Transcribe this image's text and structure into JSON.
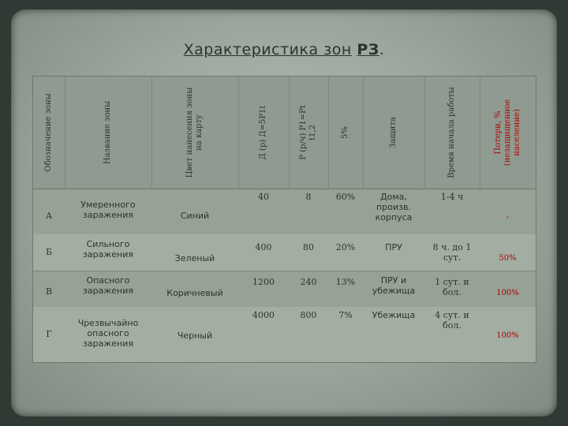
{
  "title": {
    "main": "Характеристика зон",
    "abbr": "РЗ",
    "dot": "."
  },
  "headers": [
    "Обозначение зоны",
    "Название зоны",
    "Цвет нанесения зоны на карту",
    "Д (р) Д=5Р1t",
    "Р (р/ч) Р1=Рt t1,2",
    "Защита",
    "Время начала работы",
    "Потери, % (незащищенное население)"
  ],
  "header_pct": "5%",
  "rows": [
    {
      "code": "А",
      "name": "Умеренного заражения",
      "color": "Синий",
      "dose": "40",
      "rate": "8",
      "pct": "60%",
      "protection": "Дома, произв. корпуса",
      "time": "1-4 ч",
      "loss": "-"
    },
    {
      "code": "Б",
      "name": "Сильного заражения",
      "color": "Зеленый",
      "dose": "400",
      "rate": "80",
      "pct": "20%",
      "protection": "ПРУ",
      "time": "8 ч. до 1 сут.",
      "loss": "50%"
    },
    {
      "code": "В",
      "name": "Опасного заражения",
      "color": "Коричневый",
      "dose": "1200",
      "rate": "240",
      "pct": "13%",
      "protection": "ПРУ и убежища",
      "time": "1 сут. и бол.",
      "loss": "100%"
    },
    {
      "code": "Г",
      "name": "Чрезвычайно опасного заражения",
      "color": "Черный",
      "dose": "4000",
      "rate": "800",
      "pct": "7%",
      "protection": "Убежища",
      "time": "4 сут. и бол.",
      "loss": "100%"
    }
  ]
}
